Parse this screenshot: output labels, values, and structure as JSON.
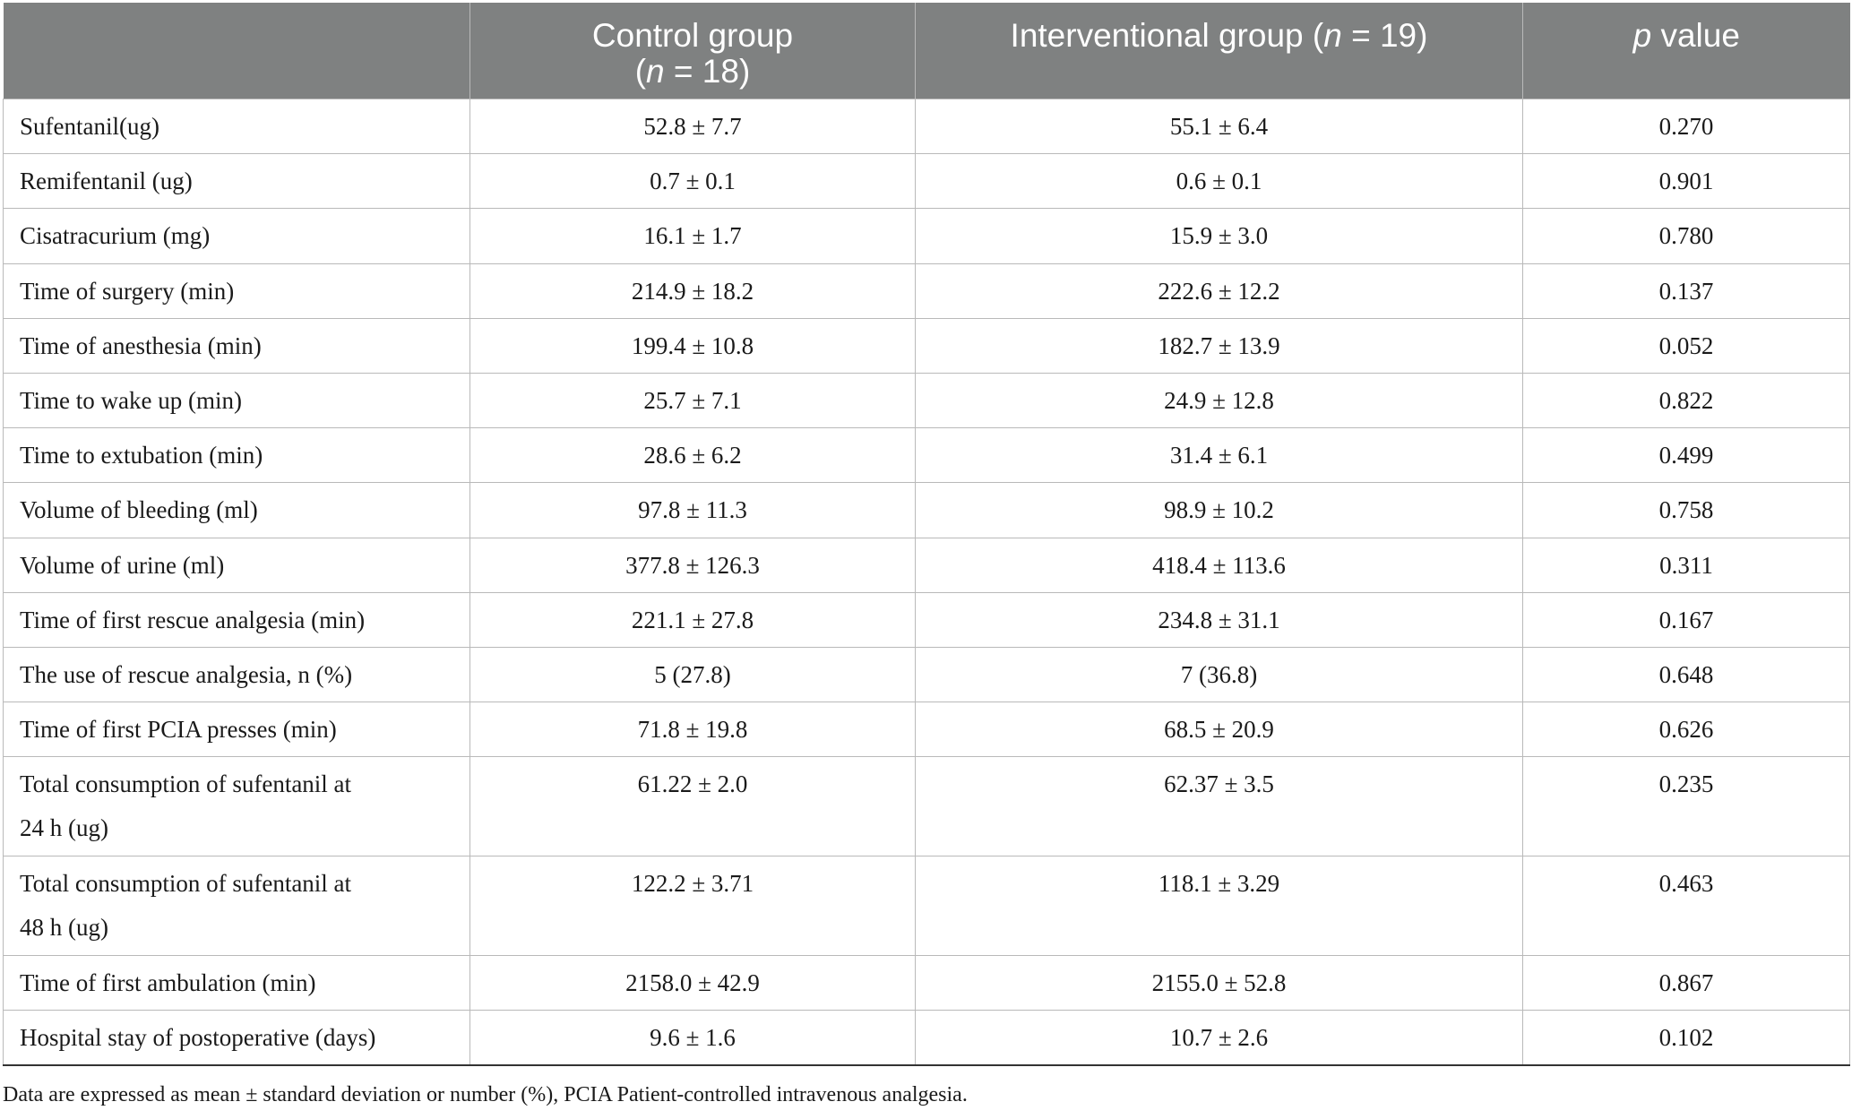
{
  "header": {
    "col0": "",
    "col1_line1": "Control group",
    "col1_line2_n": "n",
    "col1_line2_rest": " = 18)",
    "col2_pre": "Interventional group (",
    "col2_n": "n",
    "col2_rest": " = 19)",
    "col3_p": "p",
    "col3_rest": " value"
  },
  "rows": [
    {
      "label": "Sufentanil(ug)",
      "control": "52.8 ± 7.7",
      "interventional": "55.1 ± 6.4",
      "p": "0.270"
    },
    {
      "label": "Remifentanil (ug)",
      "control": "0.7 ± 0.1",
      "interventional": "0.6 ± 0.1",
      "p": "0.901"
    },
    {
      "label": "Cisatracurium (mg)",
      "control": "16.1 ± 1.7",
      "interventional": "15.9 ± 3.0",
      "p": "0.780"
    },
    {
      "label": "Time of surgery (min)",
      "control": "214.9 ± 18.2",
      "interventional": "222.6 ± 12.2",
      "p": "0.137"
    },
    {
      "label": "Time of anesthesia (min)",
      "control": "199.4 ± 10.8",
      "interventional": "182.7 ± 13.9",
      "p": "0.052"
    },
    {
      "label": "Time to wake up (min)",
      "control": "25.7 ± 7.1",
      "interventional": "24.9 ± 12.8",
      "p": "0.822"
    },
    {
      "label": "Time to extubation (min)",
      "control": "28.6 ± 6.2",
      "interventional": "31.4 ± 6.1",
      "p": "0.499"
    },
    {
      "label": "Volume of bleeding (ml)",
      "control": "97.8 ± 11.3",
      "interventional": "98.9 ± 10.2",
      "p": "0.758"
    },
    {
      "label": "Volume of urine (ml)",
      "control": "377.8 ± 126.3",
      "interventional": "418.4 ± 113.6",
      "p": "0.311"
    },
    {
      "label": "Time of first rescue analgesia (min)",
      "control": "221.1 ± 27.8",
      "interventional": "234.8 ± 31.1",
      "p": "0.167"
    },
    {
      "label": "The use of rescue analgesia, n (%)",
      "control": "5 (27.8)",
      "interventional": "7 (36.8)",
      "p": "0.648"
    },
    {
      "label": "Time of first PCIA presses (min)",
      "control": "71.8 ± 19.8",
      "interventional": "68.5 ± 20.9",
      "p": "0.626"
    },
    {
      "label_line1": "Total consumption of sufentanil at",
      "label_line2": "24 h (ug)",
      "control": "61.22 ± 2.0",
      "interventional": "62.37 ± 3.5",
      "p": "0.235"
    },
    {
      "label_line1": "Total consumption of sufentanil at",
      "label_line2": "48 h (ug)",
      "control": "122.2 ± 3.71",
      "interventional": "118.1 ± 3.29",
      "p": "0.463"
    },
    {
      "label": "Time of first ambulation (min)",
      "control": "2158.0 ± 42.9",
      "interventional": "2155.0 ± 52.8",
      "p": "0.867"
    },
    {
      "label": "Hospital stay of postoperative (days)",
      "control": "9.6 ± 1.6",
      "interventional": "10.7 ± 2.6",
      "p": "0.102"
    }
  ],
  "footnote": "Data are expressed as mean ± standard deviation or number (%), PCIA Patient-controlled intravenous analgesia."
}
